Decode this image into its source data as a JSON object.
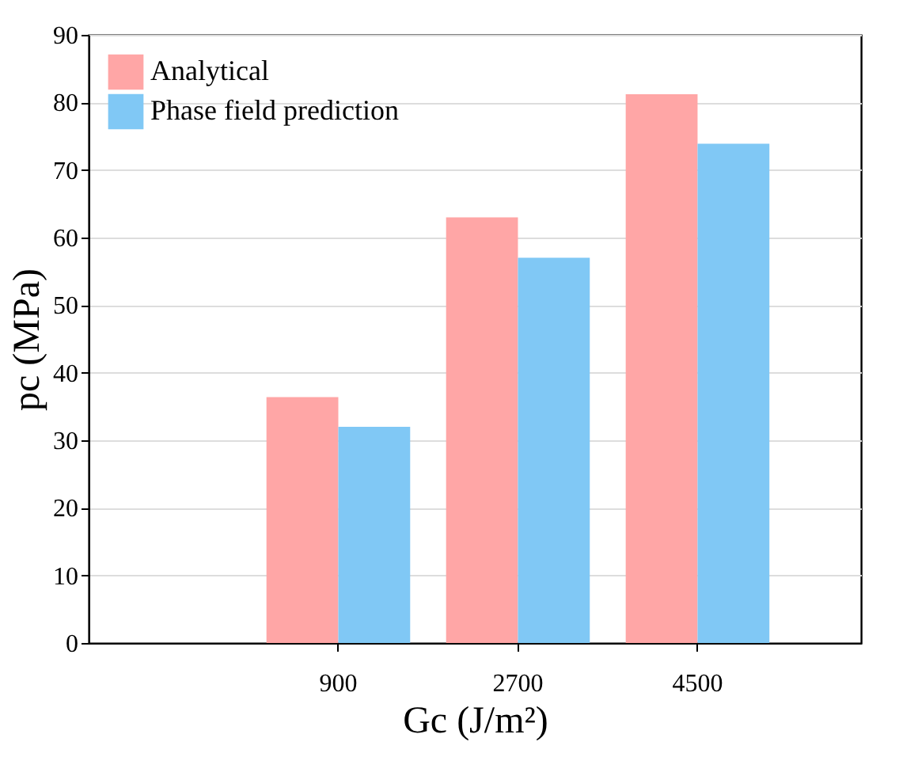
{
  "chart_data": {
    "type": "bar",
    "categories": [
      "900",
      "2700",
      "4500"
    ],
    "xlabel": "Gc (J/m²)",
    "ylabel": "pc (MPa)",
    "series": [
      {
        "name": "Analytical",
        "color": "#ffa6a6",
        "values": [
          36.4,
          63.0,
          81.2
        ]
      },
      {
        "name": "Phase field prediction",
        "color": "#80c8f5",
        "values": [
          32.0,
          57.0,
          73.9
        ]
      }
    ],
    "ylim": [
      0,
      90
    ],
    "yticks": [
      0,
      10,
      20,
      30,
      40,
      50,
      60,
      70,
      80,
      90
    ],
    "grid": "y",
    "legend": "top left"
  }
}
